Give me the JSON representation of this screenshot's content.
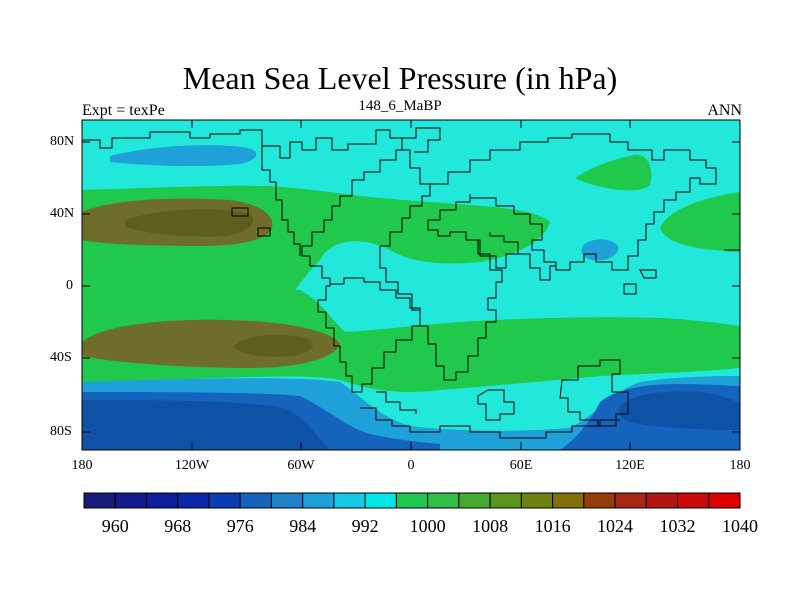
{
  "title": "Mean Sea Level Pressure (in hPa)",
  "subtitle_left": "Expt = texPe",
  "subtitle_center": "148_6_MaBP",
  "subtitle_right": "ANN",
  "y_ticks": [
    "80N",
    "40N",
    "0",
    "40S",
    "80S"
  ],
  "x_ticks": [
    "180",
    "120W",
    "60W",
    "0",
    "60E",
    "120E",
    "180"
  ],
  "colorbar": {
    "colors": [
      "#1a1a7a",
      "#141a8c",
      "#0f1e9c",
      "#0a28a8",
      "#0a3cb4",
      "#1464be",
      "#1e82c8",
      "#1ea0d8",
      "#14c8e6",
      "#00e6e6",
      "#1ec850",
      "#32be46",
      "#46aa32",
      "#5a961e",
      "#6e8214",
      "#826e0a",
      "#963c0a",
      "#a82814",
      "#b41414",
      "#c80a0a",
      "#dc0000"
    ],
    "labels": [
      "960",
      "968",
      "976",
      "984",
      "992",
      "1000",
      "1008",
      "1016",
      "1024",
      "1032",
      "1040"
    ]
  },
  "fill_colors": {
    "ocean_mid": "#22e8dc",
    "band_green": "#20c84c",
    "high_brown": "#6e6e2a",
    "high_brown_dark": "#5e5e1e",
    "low_blue_light": "#1ea0d8",
    "low_blue": "#1464be",
    "low_blue_dark": "#0e52a8",
    "coast": "#000000"
  }
}
